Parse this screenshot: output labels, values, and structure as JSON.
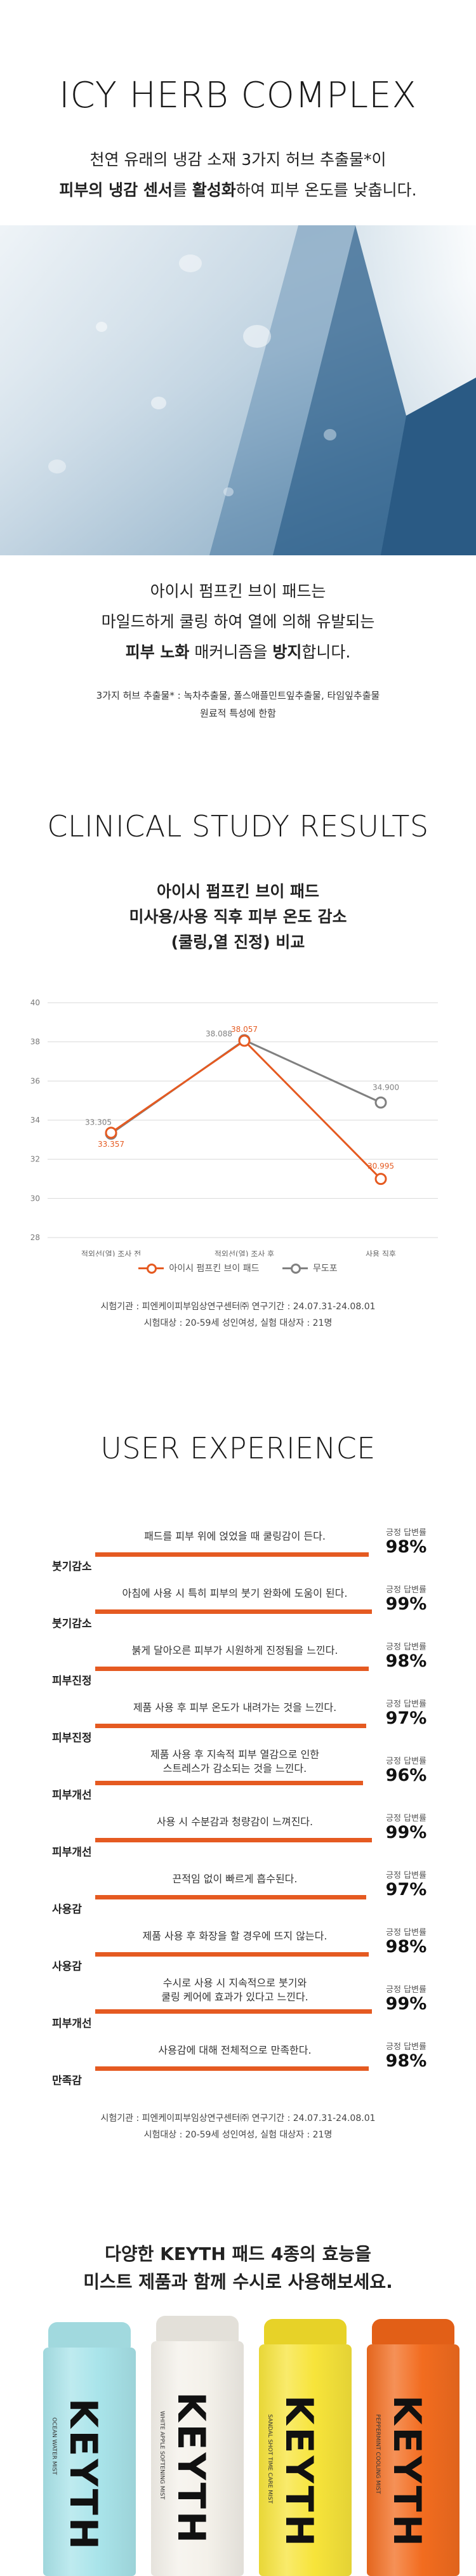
{
  "hero": {
    "title": "ICY HERB COMPLEX",
    "line1": "천연 유래의 냉감 소재 3가지 허브 추출물*이",
    "line2_bold1": "피부의 냉감 센서",
    "line2_mid": "를 ",
    "line2_bold2": "활성화",
    "line2_end": "하여 피부 온도를 낮춥니다."
  },
  "intro": {
    "line1": "아이시 펌프킨 브이 패드는",
    "line2": "마일드하게 쿨링 하여 열에 의해 유발되는",
    "line3_bold1": "피부 노화",
    "line3_mid": " 매커니즘을 ",
    "line3_bold2": "방지",
    "line3_end": "합니다.",
    "note1": "3가지 허브 추출물* : 녹차추출물, 폴스애플민트잎추출물, 타임잎추출물",
    "note2": "원료적 특성에 한함"
  },
  "clinical": {
    "title": "CLINICAL STUDY RESULTS",
    "sub1": "아이시 펌프킨 브이 패드",
    "sub2": "미사용/사용 직후 피부 온도 감소",
    "sub3": "(쿨링,열 진정) 비교",
    "foot1": "시험기관 : 피엔케이피부임상연구센터㈜ 연구기간 : 24.07.31-24.08.01",
    "foot2": "시험대상 : 20-59세 성인여성, 실험 대상자 : 21명"
  },
  "chart_data": {
    "type": "line",
    "categories": [
      "적외선(열) 조사 전",
      "적외선(열) 조사 후",
      "사용 직후"
    ],
    "ylim": [
      28,
      40
    ],
    "yticks": [
      28,
      30,
      32,
      34,
      36,
      38,
      40
    ],
    "grid": true,
    "legend_position": "bottom",
    "series": [
      {
        "name": "아이시 펌프킨 브이 패드",
        "color": "#e55a21",
        "values": [
          33.357,
          38.057,
          30.995
        ]
      },
      {
        "name": "무도포",
        "color": "#808080",
        "values": [
          33.305,
          38.088,
          34.9
        ]
      }
    ]
  },
  "ux": {
    "title": "USER EXPERIENCE",
    "label": "긍정 답변률",
    "foot1": "시험기관 : 피엔케이피부임상연구센터㈜ 연구기간 : 24.07.31-24.08.01",
    "foot2": "시험대상 : 20-59세 성인여성, 실험 대상자 : 21명",
    "rows": [
      {
        "cat": "붓기감소",
        "text": "패드를 피부 위에 얹었을 때 쿨링감이 든다.",
        "pct": "98%",
        "value": 98
      },
      {
        "cat": "붓기감소",
        "text": "아침에 사용 시 특히 피부의 붓기 완화에 도움이 된다.",
        "pct": "99%",
        "value": 99
      },
      {
        "cat": "피부진정",
        "text": "붉게 달아오른 피부가 시원하게 진정됨을 느낀다.",
        "pct": "98%",
        "value": 98
      },
      {
        "cat": "피부진정",
        "text": "제품 사용 후 피부 온도가 내려가는 것을 느낀다.",
        "pct": "97%",
        "value": 97
      },
      {
        "cat": "피부개선",
        "text": "제품 사용 후 지속적 피부 열감으로 인한\n스트레스가 감소되는 것을 느낀다.",
        "pct": "96%",
        "value": 96
      },
      {
        "cat": "피부개선",
        "text": "사용 시 수분감과 청량감이 느껴진다.",
        "pct": "99%",
        "value": 99
      },
      {
        "cat": "사용감",
        "text": "끈적임 없이 빠르게 흡수된다.",
        "pct": "97%",
        "value": 97
      },
      {
        "cat": "사용감",
        "text": "제품 사용 후 화장을 할 경우에 뜨지 않는다.",
        "pct": "98%",
        "value": 98
      },
      {
        "cat": "피부개선",
        "text": "수시로 사용 시 지속적으로 붓기와\n쿨링 케어에 효과가 있다고 느낀다.",
        "pct": "99%",
        "value": 99
      },
      {
        "cat": "만족감",
        "text": "사용감에 대해 전체적으로 만족한다.",
        "pct": "98%",
        "value": 98
      }
    ]
  },
  "bottom": {
    "line1": "다양한 KEYTH 패드 4종의 효능을",
    "line2": "미스트 제품과 함께 수시로 사용해보세요.",
    "products": [
      {
        "brand": "KEYTH",
        "small": "OCEAN WATER MIST",
        "color": "#a9e4ea",
        "cap": "#a9e4ea"
      },
      {
        "brand": "KEYTH",
        "small": "WHITE APPLE SOFTENING MIST",
        "color": "#f4f1ea",
        "cap": "#efece4"
      },
      {
        "brand": "KEYTH",
        "small": "SANDAL SHOT TIME CARE MIST",
        "color": "#f7e43a",
        "cap": "#f3dd2a"
      },
      {
        "brand": "KEYTH",
        "small": "PEPPERMINT COOLING MIST",
        "color": "#f26c1f",
        "cap": "#ee6418"
      }
    ]
  }
}
